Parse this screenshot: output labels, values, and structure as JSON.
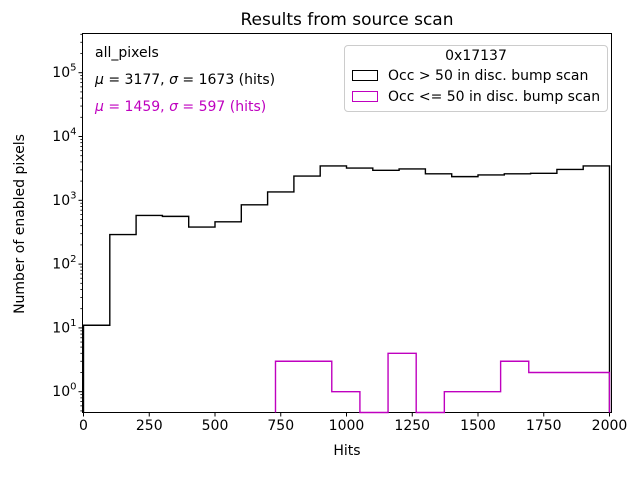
{
  "figure": {
    "title": "Results from source scan",
    "xlabel": "Hits",
    "ylabel": "Number of enabled pixels"
  },
  "annotations": {
    "dataset": "all_pixels",
    "black": {
      "mu_sym": "μ",
      "mu_rest": " = 3177, ",
      "sigma_sym": "σ",
      "sigma_rest": " = 1673 (hits)"
    },
    "magenta": {
      "mu_sym": "μ",
      "mu_rest": " = 1459, ",
      "sigma_sym": "σ",
      "sigma_rest": " = 597 (hits)"
    }
  },
  "legend": {
    "title": "0x17137",
    "entries": [
      {
        "label": "Occ > 50 in disc. bump scan",
        "color": "#000000"
      },
      {
        "label": "Occ <= 50 in disc. bump scan",
        "color": "#BF00BF"
      }
    ]
  },
  "colors": {
    "black": "#000000",
    "magenta": "#BF00BF",
    "legend_border": "#cccccc",
    "background": "#ffffff"
  },
  "chart_data": {
    "type": "step-histogram",
    "title": "Results from source scan",
    "xlabel": "Hits",
    "ylabel": "Number of enabled pixels",
    "xlim": [
      0,
      2000
    ],
    "xticks": [
      0,
      250,
      500,
      750,
      1000,
      1250,
      1500,
      1750,
      2000
    ],
    "yscale": "log",
    "ylim": [
      0.46,
      420000
    ],
    "ytick_exponents": [
      0,
      1,
      2,
      3,
      4,
      5
    ],
    "grid": false,
    "legend_position": "upper right",
    "series": [
      {
        "key": "occ-gt-50",
        "name": "Occ > 50 in disc. bump scan",
        "color": "#000000",
        "bin_edges": [
          0,
          100,
          200,
          300,
          400,
          500,
          600,
          700,
          800,
          900,
          1000,
          1100,
          1200,
          1300,
          1400,
          1500,
          1600,
          1700,
          1800,
          1900,
          2000
        ],
        "values": [
          11,
          290,
          580,
          560,
          380,
          460,
          850,
          1350,
          2400,
          3450,
          3200,
          2950,
          3100,
          2600,
          2350,
          2500,
          2600,
          2650,
          3050,
          3450
        ]
      },
      {
        "key": "occ-le-50",
        "name": "Occ <= 50 in disc. bump scan",
        "color": "#BF00BF",
        "bin_edges": [
          730,
          837,
          944,
          1051,
          1158,
          1265,
          1372,
          1479,
          1586,
          1693,
          1800,
          1907,
          2000
        ],
        "values": [
          3,
          3,
          1,
          0,
          4,
          0,
          1,
          1,
          3,
          2,
          2,
          2
        ]
      }
    ]
  }
}
